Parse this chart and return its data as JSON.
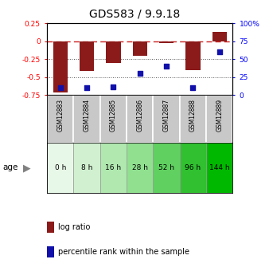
{
  "title": "GDS583 / 9.9.18",
  "samples": [
    "GSM12883",
    "GSM12884",
    "GSM12885",
    "GSM12886",
    "GSM12887",
    "GSM12888",
    "GSM12889"
  ],
  "ages": [
    "0 h",
    "8 h",
    "16 h",
    "28 h",
    "52 h",
    "96 h",
    "144 h"
  ],
  "log_ratio": [
    -0.72,
    -0.42,
    -0.3,
    -0.2,
    -0.02,
    -0.4,
    0.13
  ],
  "percentile_rank": [
    10,
    10,
    11,
    30,
    40,
    10,
    60
  ],
  "ylim_left": [
    -0.75,
    0.25
  ],
  "ylim_right": [
    0,
    100
  ],
  "yticks_left": [
    0.25,
    0,
    -0.25,
    -0.5,
    -0.75
  ],
  "yticks_right": [
    100,
    75,
    50,
    25,
    0
  ],
  "ytick_labels_left": [
    "0.25",
    "0",
    "-0.25",
    "-0.5",
    "-0.75"
  ],
  "ytick_labels_right": [
    "100%",
    "75",
    "50",
    "25",
    "0"
  ],
  "bar_color": "#8B1A1A",
  "dot_color": "#1111aa",
  "sample_bg": "#c8c8c8",
  "hline_color": "#cc2222",
  "dotted_color": "#555555",
  "age_colors": [
    "#e8f8e8",
    "#d0f0d0",
    "#b0e8b0",
    "#90e090",
    "#60d060",
    "#30c030",
    "#00b800"
  ],
  "bar_width": 0.55
}
